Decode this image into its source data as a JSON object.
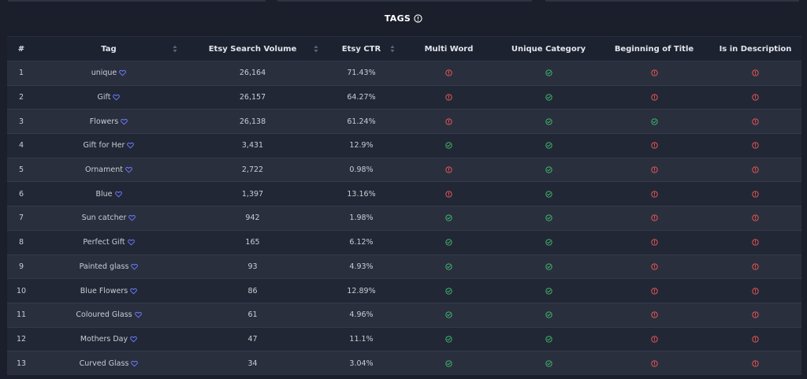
{
  "header": {
    "title": "TAGS"
  },
  "colors": {
    "ok": "#3fb56b",
    "fail": "#e85757",
    "heart": "#6c7cff"
  },
  "columns": [
    "#",
    "Tag",
    "Etsy Search Volume",
    "Etsy CTR",
    "Multi Word",
    "Unique Category",
    "Beginning of Title",
    "Is in Description"
  ],
  "rows": [
    {
      "num": "1",
      "tag": "unique",
      "volume": "26,164",
      "ctr": "71.43%",
      "multi_word": false,
      "unique_category": true,
      "beginning_of_title": false,
      "in_description": false
    },
    {
      "num": "2",
      "tag": "Gift",
      "volume": "26,157",
      "ctr": "64.27%",
      "multi_word": false,
      "unique_category": true,
      "beginning_of_title": false,
      "in_description": false
    },
    {
      "num": "3",
      "tag": "Flowers",
      "volume": "26,138",
      "ctr": "61.24%",
      "multi_word": false,
      "unique_category": true,
      "beginning_of_title": true,
      "in_description": false
    },
    {
      "num": "4",
      "tag": "Gift for Her",
      "volume": "3,431",
      "ctr": "12.9%",
      "multi_word": true,
      "unique_category": true,
      "beginning_of_title": false,
      "in_description": false
    },
    {
      "num": "5",
      "tag": "Ornament",
      "volume": "2,722",
      "ctr": "0.98%",
      "multi_word": false,
      "unique_category": true,
      "beginning_of_title": false,
      "in_description": false
    },
    {
      "num": "6",
      "tag": "Blue",
      "volume": "1,397",
      "ctr": "13.16%",
      "multi_word": false,
      "unique_category": true,
      "beginning_of_title": false,
      "in_description": false
    },
    {
      "num": "7",
      "tag": "Sun catcher",
      "volume": "942",
      "ctr": "1.98%",
      "multi_word": true,
      "unique_category": true,
      "beginning_of_title": false,
      "in_description": false
    },
    {
      "num": "8",
      "tag": "Perfect Gift",
      "volume": "165",
      "ctr": "6.12%",
      "multi_word": true,
      "unique_category": true,
      "beginning_of_title": false,
      "in_description": false
    },
    {
      "num": "9",
      "tag": "Painted glass",
      "volume": "93",
      "ctr": "4.93%",
      "multi_word": true,
      "unique_category": true,
      "beginning_of_title": false,
      "in_description": false
    },
    {
      "num": "10",
      "tag": "Blue Flowers",
      "volume": "86",
      "ctr": "12.89%",
      "multi_word": true,
      "unique_category": true,
      "beginning_of_title": false,
      "in_description": false
    },
    {
      "num": "11",
      "tag": "Coloured Glass",
      "volume": "61",
      "ctr": "4.96%",
      "multi_word": true,
      "unique_category": true,
      "beginning_of_title": false,
      "in_description": false
    },
    {
      "num": "12",
      "tag": "Mothers Day",
      "volume": "47",
      "ctr": "11.1%",
      "multi_word": true,
      "unique_category": true,
      "beginning_of_title": false,
      "in_description": false
    },
    {
      "num": "13",
      "tag": "Curved Glass",
      "volume": "34",
      "ctr": "3.04%",
      "multi_word": true,
      "unique_category": true,
      "beginning_of_title": false,
      "in_description": false
    }
  ]
}
